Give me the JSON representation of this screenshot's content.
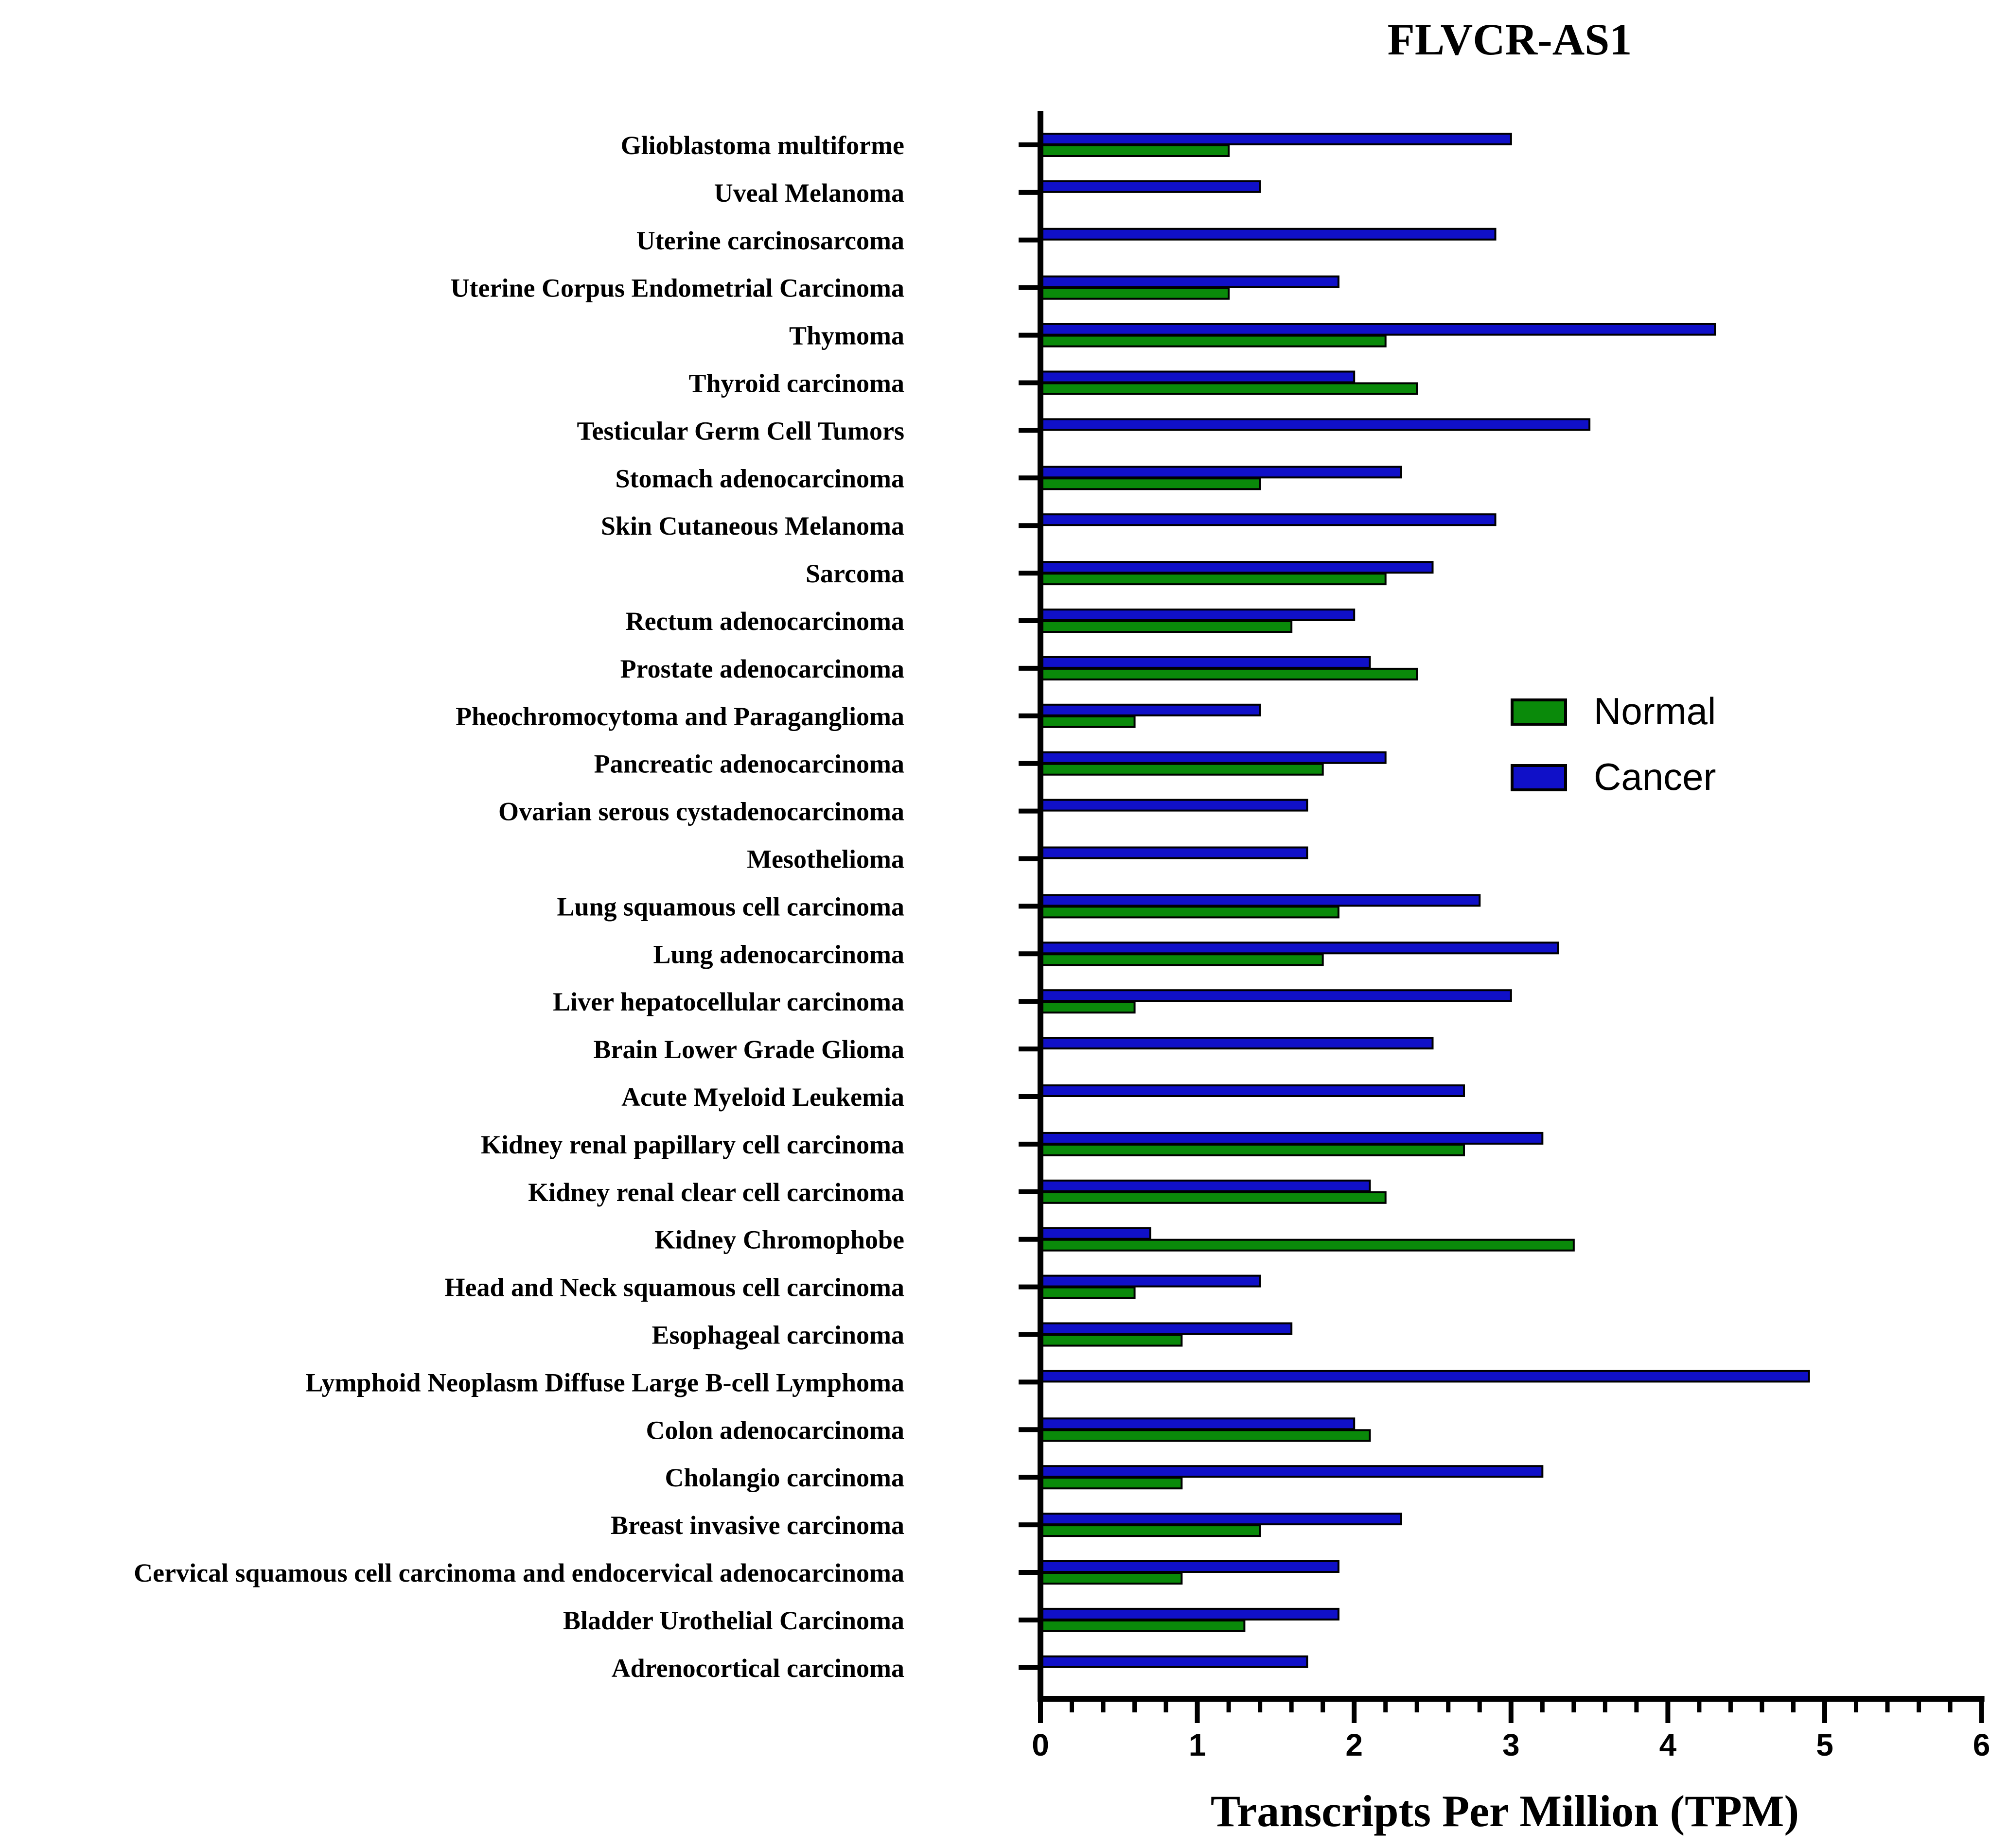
{
  "chart_data": {
    "type": "bar",
    "orientation": "horizontal",
    "title": "FLVCR-AS1",
    "xlabel": "Transcripts Per Million (TPM)",
    "xlim": [
      0,
      6
    ],
    "xticks": [
      "0",
      "1",
      "2",
      "3",
      "4",
      "5",
      "6"
    ],
    "grid": false,
    "legend_position": "right",
    "categories": [
      "Glioblastoma multiforme",
      "Uveal Melanoma",
      "Uterine carcinosarcoma",
      "Uterine Corpus Endometrial Carcinoma",
      "Thymoma",
      "Thyroid carcinoma",
      "Testicular Germ Cell Tumors",
      "Stomach adenocarcinoma",
      "Skin Cutaneous Melanoma",
      "Sarcoma",
      "Rectum adenocarcinoma",
      "Prostate adenocarcinoma",
      "Pheochromocytoma and Paraganglioma",
      "Pancreatic adenocarcinoma",
      "Ovarian serous cystadenocarcinoma",
      "Mesothelioma",
      "Lung squamous cell carcinoma",
      "Lung adenocarcinoma",
      "Liver hepatocellular carcinoma",
      "Brain Lower Grade Glioma",
      "Acute Myeloid Leukemia",
      "Kidney renal papillary cell carcinoma",
      "Kidney renal clear cell carcinoma",
      "Kidney Chromophobe",
      "Head and Neck squamous cell carcinoma",
      "Esophageal carcinoma",
      "Lymphoid Neoplasm Diffuse Large B-cell Lymphoma",
      "Colon adenocarcinoma",
      "Cholangio carcinoma",
      "Breast invasive carcinoma",
      "Cervical squamous cell carcinoma and endocervical adenocarcinoma",
      "Bladder Urothelial Carcinoma",
      "Adrenocortical carcinoma"
    ],
    "series": [
      {
        "name": "Cancer",
        "color": "#1010c8",
        "values": [
          3.0,
          1.4,
          2.9,
          1.9,
          4.3,
          2.0,
          3.5,
          2.3,
          2.9,
          2.5,
          2.0,
          2.1,
          1.4,
          2.2,
          1.7,
          1.7,
          2.8,
          3.3,
          3.0,
          2.5,
          2.7,
          3.2,
          2.1,
          0.7,
          1.4,
          1.6,
          4.9,
          2.0,
          3.2,
          2.3,
          1.9,
          1.9,
          1.7
        ]
      },
      {
        "name": "Normal",
        "color": "#0a8a0a",
        "values": [
          1.2,
          null,
          null,
          1.2,
          2.2,
          2.4,
          null,
          1.4,
          null,
          2.2,
          1.6,
          2.4,
          0.6,
          1.8,
          null,
          null,
          1.9,
          1.8,
          0.6,
          null,
          null,
          2.7,
          2.2,
          3.4,
          0.6,
          0.9,
          null,
          2.1,
          0.9,
          1.4,
          0.9,
          1.3,
          null
        ]
      }
    ],
    "legend": [
      "Normal",
      "Cancer"
    ]
  }
}
